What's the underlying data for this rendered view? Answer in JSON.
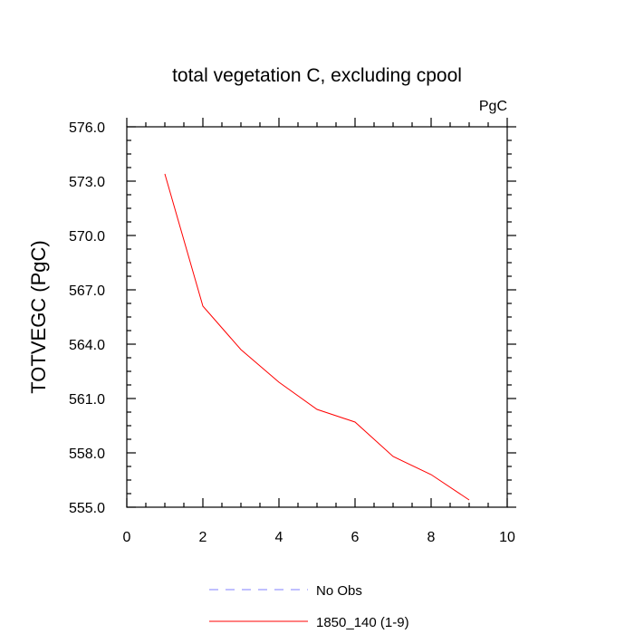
{
  "chart_data": {
    "type": "line",
    "title": "total vegetation C, excluding cpool",
    "units_label": "PgC",
    "ylabel": "TOTVEGC  (PgC)",
    "xlabel": "",
    "xlim": [
      0,
      10
    ],
    "ylim": [
      555.0,
      576.0
    ],
    "x_ticks": [
      0,
      2,
      4,
      6,
      8,
      10
    ],
    "y_ticks": [
      555.0,
      558.0,
      561.0,
      564.0,
      567.0,
      570.0,
      573.0,
      576.0
    ],
    "x_tick_labels": [
      "0",
      "2",
      "4",
      "6",
      "8",
      "10"
    ],
    "y_tick_labels": [
      "555.0",
      "558.0",
      "561.0",
      "564.0",
      "567.0",
      "570.0",
      "573.0",
      "576.0"
    ],
    "grid": false,
    "legend_position": "bottom",
    "series": [
      {
        "name": "1850_140 (1-9)",
        "color": "#ff0000",
        "style": "solid",
        "x": [
          1,
          2,
          3,
          4,
          5,
          6,
          7,
          8,
          9
        ],
        "y": [
          573.4,
          566.1,
          563.7,
          561.9,
          560.4,
          559.7,
          557.8,
          556.8,
          555.4
        ]
      }
    ],
    "legend": [
      {
        "label": "No Obs",
        "color": "#8080ff",
        "style": "dashed"
      },
      {
        "label": "1850_140 (1-9)",
        "color": "#ff0000",
        "style": "solid"
      }
    ]
  }
}
